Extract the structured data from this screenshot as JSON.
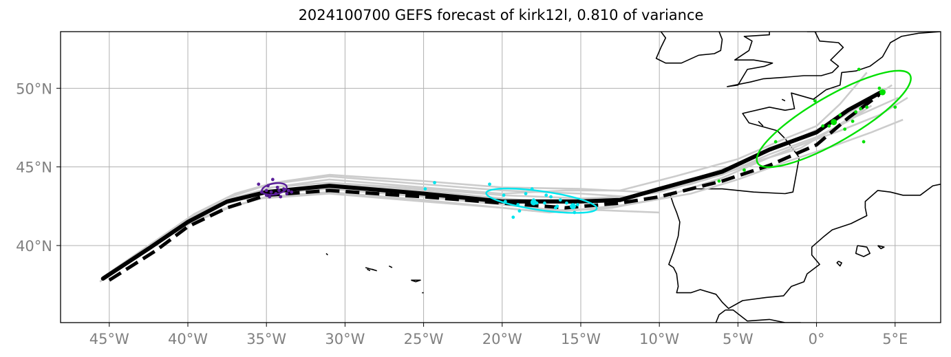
{
  "title": "2024100700 GEFS forecast of kirk12l, 0.810 of variance",
  "map": {
    "lon_range": [
      -48.1,
      7.9
    ],
    "lat_range": [
      35.1,
      53.6
    ],
    "x_ticks": [
      {
        "lon": -45,
        "label": "45°W"
      },
      {
        "lon": -40,
        "label": "40°W"
      },
      {
        "lon": -35,
        "label": "35°W"
      },
      {
        "lon": -30,
        "label": "30°W"
      },
      {
        "lon": -25,
        "label": "25°W"
      },
      {
        "lon": -20,
        "label": "20°W"
      },
      {
        "lon": -15,
        "label": "15°W"
      },
      {
        "lon": -10,
        "label": "10°W"
      },
      {
        "lon": -5,
        "label": "5°W"
      },
      {
        "lon": 0,
        "label": "0°"
      },
      {
        "lon": 5,
        "label": "5°E"
      }
    ],
    "y_ticks": [
      {
        "lat": 40,
        "label": "40°N"
      },
      {
        "lat": 45,
        "label": "45°N"
      },
      {
        "lat": 50,
        "label": "50°N"
      }
    ],
    "grid": true
  },
  "colors": {
    "ensemble": "#cccccc",
    "mean": "#000000",
    "t1": "#5b1f9a",
    "t2": "#00e5ee",
    "t3": "#00e000",
    "coast": "#000000",
    "grid": "#b0b0b0",
    "tick": "#808080"
  },
  "tracks": {
    "mean_solid": [
      [
        -45.4,
        37.9
      ],
      [
        -42.5,
        39.8
      ],
      [
        -40,
        41.5
      ],
      [
        -37.5,
        42.8
      ],
      [
        -35,
        43.4
      ],
      [
        -31,
        43.8
      ],
      [
        -25,
        43.3
      ],
      [
        -20,
        42.8
      ],
      [
        -15,
        42.8
      ],
      [
        -12.5,
        42.9
      ],
      [
        -10,
        43.6
      ],
      [
        -6,
        44.7
      ],
      [
        -3,
        46.1
      ],
      [
        0,
        47.2
      ],
      [
        2,
        48.6
      ],
      [
        4.2,
        49.8
      ]
    ],
    "mean_dashed": [
      [
        -45,
        37.8
      ],
      [
        -42,
        39.7
      ],
      [
        -40,
        41.2
      ],
      [
        -37.5,
        42.4
      ],
      [
        -35,
        43.2
      ],
      [
        -31,
        43.5
      ],
      [
        -25,
        43.1
      ],
      [
        -20,
        42.7
      ],
      [
        -16,
        42.4
      ],
      [
        -12.5,
        42.7
      ],
      [
        -10,
        43.1
      ],
      [
        -6,
        44.1
      ],
      [
        -3,
        45.1
      ],
      [
        0,
        46.4
      ],
      [
        2,
        48.1
      ],
      [
        4,
        49.6
      ]
    ],
    "ensemble": [
      [
        [
          -45.6,
          37.7
        ],
        [
          -42.8,
          39.7
        ],
        [
          -40.2,
          41.4
        ],
        [
          -37.8,
          42.6
        ],
        [
          -35.2,
          43.3
        ],
        [
          -31,
          43.6
        ],
        [
          -25,
          43.1
        ],
        [
          -20,
          42.6
        ],
        [
          -16,
          42.2
        ],
        [
          -13,
          42.4
        ],
        [
          -10,
          43
        ],
        [
          -6,
          44.3
        ],
        [
          -3,
          45.6
        ],
        [
          0,
          46.8
        ],
        [
          2.5,
          48.2
        ],
        [
          5.2,
          49.4
        ]
      ],
      [
        [
          -45.2,
          38.1
        ],
        [
          -42.2,
          40.1
        ],
        [
          -39.8,
          41.8
        ],
        [
          -37.2,
          43
        ],
        [
          -34.6,
          43.7
        ],
        [
          -31,
          44.2
        ],
        [
          -25,
          43.7
        ],
        [
          -20,
          43.3
        ],
        [
          -16,
          43.5
        ],
        [
          -12.5,
          43.5
        ],
        [
          -9,
          44.4
        ],
        [
          -5,
          45.5
        ],
        [
          -2,
          46.8
        ],
        [
          0,
          47.6
        ],
        [
          1.5,
          49
        ],
        [
          3.2,
          51
        ]
      ],
      [
        [
          -45.5,
          37.8
        ],
        [
          -42.6,
          39.8
        ],
        [
          -40,
          41.6
        ],
        [
          -37.6,
          43
        ],
        [
          -34.8,
          43.9
        ],
        [
          -31,
          44.4
        ],
        [
          -25,
          43.9
        ],
        [
          -20,
          43.5
        ],
        [
          -15,
          43.3
        ],
        [
          -12,
          43.1
        ],
        [
          -9,
          43.8
        ],
        [
          -5,
          45.2
        ],
        [
          -1,
          46.9
        ],
        [
          1,
          47.8
        ],
        [
          3,
          49
        ],
        [
          4.8,
          50.2
        ]
      ],
      [
        [
          -45.3,
          37.9
        ],
        [
          -42.4,
          39.9
        ],
        [
          -40.1,
          41.3
        ],
        [
          -37.4,
          42.4
        ],
        [
          -35,
          43.1
        ],
        [
          -31,
          43.4
        ],
        [
          -25,
          42.9
        ],
        [
          -20,
          42.4
        ],
        [
          -17,
          42.1
        ],
        [
          -12,
          42.6
        ],
        [
          -8,
          43.3
        ],
        [
          -5,
          44.2
        ],
        [
          -2,
          45.3
        ],
        [
          1,
          46.3
        ],
        [
          3.5,
          47.2
        ],
        [
          5.5,
          48
        ]
      ],
      [
        [
          -45.4,
          38
        ],
        [
          -42.5,
          40
        ],
        [
          -39.6,
          42
        ],
        [
          -37,
          43.3
        ],
        [
          -34.5,
          44
        ],
        [
          -31,
          44.5
        ],
        [
          -25,
          44.1
        ],
        [
          -20,
          43.7
        ],
        [
          -15,
          43.6
        ],
        [
          -11,
          43.4
        ],
        [
          -8,
          43.9
        ],
        [
          -4,
          45.2
        ],
        [
          -1,
          46.4
        ],
        [
          1.5,
          47.3
        ],
        [
          4,
          48.3
        ],
        [
          5.8,
          49.4
        ]
      ],
      [
        [
          -45.3,
          37.9
        ],
        [
          -42.3,
          39.9
        ],
        [
          -40,
          41.7
        ],
        [
          -37.6,
          42.7
        ],
        [
          -34.9,
          43.4
        ],
        [
          -31,
          43.9
        ],
        [
          -25,
          43.5
        ],
        [
          -20,
          43
        ],
        [
          -16,
          42.7
        ],
        [
          -13,
          42.9
        ],
        [
          -10,
          43.4
        ],
        [
          -7,
          44.2
        ],
        [
          -4,
          45.3
        ],
        [
          -1,
          46.2
        ],
        [
          1,
          47.4
        ],
        [
          3,
          48.7
        ]
      ],
      [
        [
          -45.4,
          37.8
        ],
        [
          -42.7,
          39.6
        ],
        [
          -40.3,
          41.2
        ],
        [
          -37.9,
          42.3
        ],
        [
          -35.3,
          43
        ],
        [
          -31,
          43.3
        ],
        [
          -25,
          42.8
        ],
        [
          -20,
          42.4
        ],
        [
          -18,
          42.2
        ],
        [
          -15,
          42.3
        ],
        [
          -10,
          42.1
        ]
      ],
      [
        [
          -45.2,
          38
        ],
        [
          -42.4,
          40
        ],
        [
          -40,
          41.6
        ],
        [
          -37.3,
          42.9
        ],
        [
          -34.7,
          43.7
        ],
        [
          -31,
          44
        ],
        [
          -25,
          43.6
        ],
        [
          -20,
          43.2
        ],
        [
          -15,
          43
        ],
        [
          -12,
          43.1
        ],
        [
          -9,
          43.7
        ],
        [
          -6,
          44.5
        ],
        [
          -3,
          45.8
        ],
        [
          0,
          46.9
        ],
        [
          2,
          47.9
        ],
        [
          3.5,
          48.9
        ]
      ]
    ]
  },
  "ellipses": {
    "t1": {
      "lon": -34.5,
      "lat": 43.6,
      "rx_deg": 0.8,
      "ry_deg": 0.35,
      "angle": -10
    },
    "t2": {
      "lon": -17.5,
      "lat": 42.85,
      "rx_deg": 3.55,
      "ry_deg": 0.6,
      "angle": 8
    },
    "t3": {
      "lon": 1.1,
      "lat": 48.05,
      "rx_deg": 5.6,
      "ry_deg": 1.45,
      "angle": -30
    }
  },
  "points": {
    "t1": [
      [
        -35.5,
        43.9
      ],
      [
        -35,
        43.5
      ],
      [
        -34.7,
        43.4
      ],
      [
        -34.4,
        43.3
      ],
      [
        -34.2,
        43.5
      ],
      [
        -33.9,
        43.6
      ],
      [
        -34.6,
        44.2
      ],
      [
        -35,
        43.2
      ],
      [
        -33.7,
        43.3
      ],
      [
        -33.4,
        43.4
      ],
      [
        -34.9,
        43.8
      ],
      [
        -35.3,
        43.4
      ],
      [
        -34.1,
        43.1
      ],
      [
        -34.3,
        43.7
      ],
      [
        -33.6,
        43.5
      ],
      [
        -34.8,
        43.1
      ]
    ],
    "t2": [
      [
        -20.8,
        43.9
      ],
      [
        -19.9,
        43.2
      ],
      [
        -19.8,
        42.8
      ],
      [
        -19,
        42.6
      ],
      [
        -18.9,
        42.2
      ],
      [
        -18.5,
        43.3
      ],
      [
        -18.1,
        43.6
      ],
      [
        -18,
        42.9
      ],
      [
        -17.8,
        42.7
      ],
      [
        -17.3,
        42.7
      ],
      [
        -17.2,
        43.2
      ],
      [
        -16.9,
        43.1
      ],
      [
        -16.5,
        42.5
      ],
      [
        -16.3,
        42.9
      ],
      [
        -15.9,
        42.7
      ],
      [
        -15.6,
        42.5
      ],
      [
        -15.4,
        42.1
      ],
      [
        -15.2,
        42.6
      ],
      [
        -19.3,
        41.8
      ],
      [
        -24.9,
        43.6
      ],
      [
        -24.3,
        44.0
      ],
      [
        -16.6,
        42.4
      ]
    ],
    "t3": [
      [
        -6.2,
        44.1
      ],
      [
        -4.6,
        44.8
      ],
      [
        -2.6,
        46.6
      ],
      [
        -0.1,
        49.2
      ],
      [
        0.8,
        47.6
      ],
      [
        1.1,
        47.8
      ],
      [
        1.5,
        48.3
      ],
      [
        1.8,
        47.4
      ],
      [
        2.3,
        47.9
      ],
      [
        2.5,
        48.5
      ],
      [
        2.8,
        48.7
      ],
      [
        3.2,
        48.8
      ],
      [
        3,
        46.6
      ],
      [
        4,
        50
      ],
      [
        5,
        48.8
      ],
      [
        2.7,
        51.2
      ],
      [
        0.4,
        47.6
      ]
    ],
    "t3_big": [
      [
        1.1,
        47.85
      ],
      [
        4.2,
        49.75
      ]
    ],
    "t2_big": [
      [
        -18,
        42.75
      ],
      [
        -15.5,
        42.5
      ]
    ]
  },
  "coast": [
    [
      [
        -9.3,
        43.2
      ],
      [
        -8.2,
        43.6
      ],
      [
        -6,
        43.6
      ],
      [
        -4,
        43.4
      ],
      [
        -2,
        43.3
      ],
      [
        -1.5,
        43.4
      ],
      [
        -1.3,
        44.5
      ],
      [
        -1.1,
        45.6
      ],
      [
        -2,
        46.8
      ],
      [
        -2.5,
        47.3
      ],
      [
        -4.3,
        47.8
      ],
      [
        -4.7,
        48.4
      ],
      [
        -3,
        48.8
      ],
      [
        -2,
        48.6
      ],
      [
        -1.4,
        48.7
      ],
      [
        -1.6,
        49.7
      ],
      [
        -0.2,
        49.3
      ],
      [
        0.6,
        49.9
      ],
      [
        1.5,
        50.2
      ],
      [
        1.6,
        51
      ],
      [
        2.5,
        51.1
      ],
      [
        3.4,
        51.4
      ],
      [
        4.2,
        52
      ],
      [
        4.7,
        52.9
      ],
      [
        5.4,
        53.3
      ],
      [
        6.5,
        53.5
      ],
      [
        7.9,
        53.6
      ]
    ],
    [
      [
        -9.3,
        43.2
      ],
      [
        -9.1,
        42.6
      ],
      [
        -8.9,
        42.1
      ],
      [
        -8.7,
        41.5
      ],
      [
        -8.8,
        40.6
      ],
      [
        -9.1,
        39.6
      ],
      [
        -9.4,
        38.8
      ],
      [
        -9.1,
        38.6
      ],
      [
        -8.9,
        38.2
      ],
      [
        -8.8,
        37.4
      ],
      [
        -8.9,
        37
      ],
      [
        -8,
        37
      ],
      [
        -7.4,
        37.2
      ],
      [
        -6.4,
        36.9
      ],
      [
        -6,
        36.4
      ],
      [
        -5.6,
        36
      ],
      [
        -4.7,
        36.5
      ],
      [
        -3.2,
        36.7
      ],
      [
        -2.1,
        36.8
      ],
      [
        -1.6,
        37.4
      ],
      [
        -0.8,
        37.7
      ],
      [
        -0.6,
        38.2
      ],
      [
        0.2,
        38.8
      ],
      [
        -0.3,
        39.4
      ],
      [
        -0.3,
        39.9
      ],
      [
        0.5,
        40.6
      ],
      [
        1,
        41
      ],
      [
        2.2,
        41.4
      ],
      [
        3.2,
        41.9
      ],
      [
        3.1,
        42.4
      ],
      [
        3.1,
        42.8
      ],
      [
        3.9,
        43.5
      ],
      [
        4.7,
        43.4
      ],
      [
        5.5,
        43.2
      ],
      [
        6.6,
        43.2
      ],
      [
        7.4,
        43.8
      ],
      [
        7.9,
        43.9
      ]
    ],
    [
      [
        -5.8,
        35.9
      ],
      [
        -5.3,
        35.9
      ],
      [
        -4.4,
        35.2
      ],
      [
        -3,
        35.3
      ],
      [
        -2,
        35.1
      ],
      [
        -1,
        35.1
      ]
    ],
    [
      [
        -5.8,
        35.9
      ],
      [
        -6.2,
        35.6
      ],
      [
        -6.4,
        35.1
      ]
    ],
    [
      [
        -5.7,
        50.1
      ],
      [
        -4.2,
        50.4
      ],
      [
        -3.4,
        50.6
      ],
      [
        -2,
        50.7
      ],
      [
        -0.8,
        50.8
      ],
      [
        0.3,
        50.8
      ],
      [
        1,
        51
      ],
      [
        1.4,
        51.4
      ],
      [
        0.9,
        51.8
      ],
      [
        1.7,
        52.6
      ],
      [
        1.4,
        52.9
      ],
      [
        0.2,
        53
      ],
      [
        -0.1,
        53.6
      ],
      [
        -0.6,
        53.6
      ]
    ],
    [
      [
        -5.7,
        50.1
      ],
      [
        -5,
        50.2
      ],
      [
        -4.4,
        51.2
      ],
      [
        -3.3,
        51.4
      ],
      [
        -2.8,
        51.6
      ],
      [
        -4,
        51.8
      ],
      [
        -5.2,
        51.8
      ],
      [
        -4.3,
        52.4
      ],
      [
        -4.1,
        53
      ],
      [
        -4.6,
        53.3
      ],
      [
        -3,
        53.4
      ],
      [
        -3,
        53.6
      ]
    ],
    [
      [
        -6.2,
        53.6
      ],
      [
        -6,
        53.1
      ],
      [
        -6.1,
        52.4
      ],
      [
        -6.5,
        52.2
      ],
      [
        -7.5,
        52.1
      ],
      [
        -8.6,
        51.6
      ],
      [
        -9.6,
        51.6
      ],
      [
        -10.2,
        51.9
      ],
      [
        -9.9,
        52.6
      ],
      [
        -9.6,
        53.2
      ],
      [
        -9.9,
        53.6
      ]
    ],
    [
      [
        2.6,
        40
      ],
      [
        3.2,
        39.9
      ],
      [
        3.4,
        39.5
      ],
      [
        3,
        39.3
      ],
      [
        2.5,
        39.5
      ],
      [
        2.6,
        40
      ]
    ],
    [
      [
        1.4,
        39
      ],
      [
        1.6,
        38.9
      ],
      [
        1.5,
        38.7
      ],
      [
        1.3,
        38.9
      ],
      [
        1.4,
        39
      ]
    ],
    [
      [
        3.9,
        40
      ],
      [
        4.3,
        39.9
      ],
      [
        4.1,
        39.8
      ],
      [
        3.9,
        40
      ]
    ],
    [
      [
        8,
        41
      ],
      [
        8.2,
        41.2
      ],
      [
        8.5,
        41.1
      ]
    ],
    [
      [
        -2.2,
        49.3
      ],
      [
        -2,
        49.2
      ]
    ],
    [
      [
        -31.2,
        39.5
      ],
      [
        -31.1,
        39.4
      ]
    ],
    [
      [
        -28.7,
        38.6
      ],
      [
        -28,
        38.4
      ],
      [
        -28.3,
        38.5
      ]
    ],
    [
      [
        -27.2,
        38.7
      ],
      [
        -27,
        38.6
      ]
    ],
    [
      [
        -28.6,
        38.5
      ],
      [
        -28.4,
        38.4
      ]
    ],
    [
      [
        -25.8,
        37.8
      ],
      [
        -25.2,
        37.8
      ],
      [
        -25.5,
        37.7
      ],
      [
        -25.8,
        37.8
      ]
    ],
    [
      [
        -25.1,
        37
      ],
      [
        -25,
        37
      ]
    ],
    [
      [
        -3.7,
        47.9
      ],
      [
        -3.4,
        47.6
      ]
    ]
  ]
}
